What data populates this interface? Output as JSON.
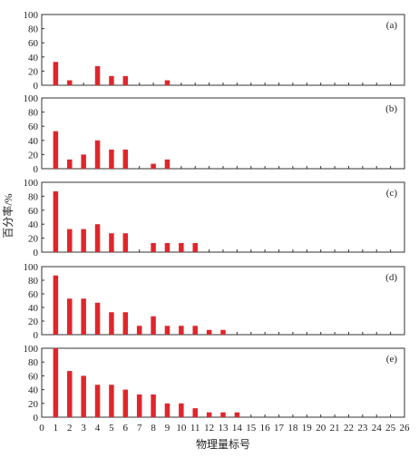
{
  "colors": {
    "bar": "#e0262b",
    "axis": "#333333"
  },
  "chart_data": {
    "type": "bar",
    "layout": "stacked-panels",
    "xlabel": "物理量标号",
    "ylabel": "百分率/%",
    "ylim": [
      0,
      100
    ],
    "yticks": [
      0,
      20,
      40,
      60,
      80,
      100
    ],
    "xticks": [
      0,
      1,
      2,
      3,
      4,
      5,
      6,
      7,
      8,
      9,
      10,
      11,
      12,
      13,
      14,
      15,
      16,
      17,
      18,
      19,
      20,
      21,
      22,
      23,
      24,
      25,
      26
    ],
    "panels": [
      {
        "label": "(a)",
        "x": [
          1,
          2,
          4,
          5,
          6,
          9
        ],
        "values": [
          33,
          7,
          27,
          13,
          13,
          7
        ]
      },
      {
        "label": "(b)",
        "x": [
          1,
          2,
          3,
          4,
          5,
          6,
          8,
          9
        ],
        "values": [
          53,
          13,
          20,
          40,
          27,
          27,
          7,
          13
        ]
      },
      {
        "label": "(c)",
        "x": [
          1,
          2,
          3,
          4,
          5,
          6,
          8,
          9,
          10,
          11
        ],
        "values": [
          87,
          33,
          33,
          40,
          27,
          27,
          13,
          13,
          13,
          13
        ]
      },
      {
        "label": "(d)",
        "x": [
          1,
          2,
          3,
          4,
          5,
          6,
          7,
          8,
          9,
          10,
          11,
          12,
          13
        ],
        "values": [
          87,
          53,
          53,
          47,
          33,
          33,
          13,
          27,
          13,
          13,
          13,
          7,
          7
        ]
      },
      {
        "label": "(e)",
        "x": [
          1,
          2,
          3,
          4,
          5,
          6,
          7,
          8,
          9,
          10,
          11,
          12,
          13,
          14
        ],
        "values": [
          100,
          67,
          60,
          47,
          47,
          40,
          33,
          33,
          20,
          20,
          13,
          7,
          7,
          7
        ]
      }
    ]
  }
}
